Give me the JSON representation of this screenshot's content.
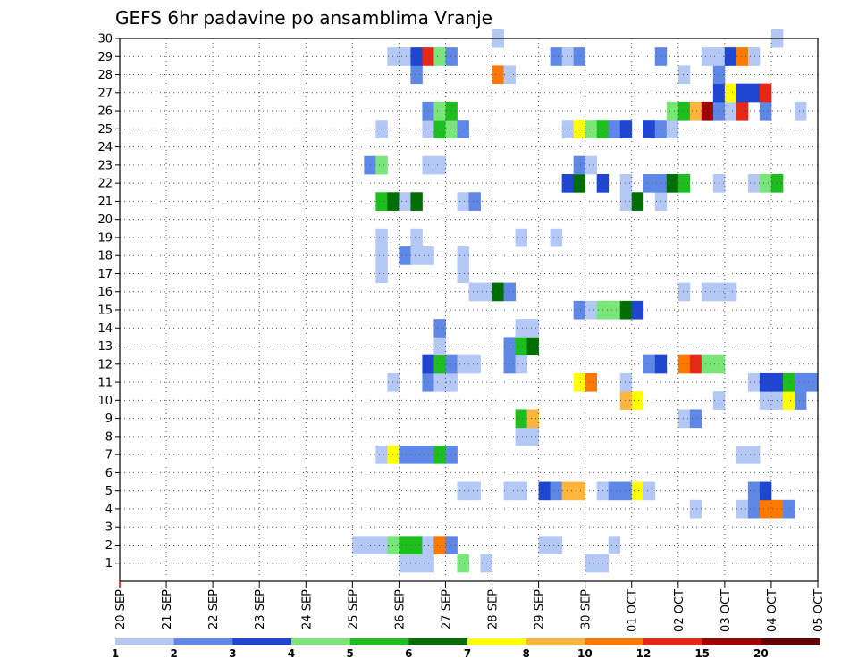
{
  "chart_data": {
    "type": "heatmap",
    "title": "GEFS 6hr padavine po ansamblima Vranje",
    "y_ticks": [
      "1",
      "2",
      "3",
      "4",
      "5",
      "6",
      "7",
      "8",
      "9",
      "10",
      "11",
      "12",
      "13",
      "14",
      "15",
      "16",
      "17",
      "18",
      "19",
      "20",
      "21",
      "22",
      "23",
      "24",
      "25",
      "26",
      "27",
      "28",
      "29",
      "30"
    ],
    "x_ticks": [
      "20 SEP",
      "21 SEP",
      "22 SEP",
      "23 SEP",
      "24 SEP",
      "25 SEP",
      "26 SEP",
      "27 SEP",
      "28 SEP",
      "29 SEP",
      "30 SEP",
      "01 OCT",
      "02 OCT",
      "03 OCT",
      "04 OCT",
      "05 OCT"
    ],
    "x_range": [
      0,
      60
    ],
    "y_range": [
      0,
      30
    ],
    "steps_per_day": 4,
    "grid": "dotted",
    "colorbar": {
      "labels": [
        "1",
        "2",
        "3",
        "4",
        "5",
        "6",
        "7",
        "8",
        "10",
        "12",
        "15",
        "20"
      ],
      "colors": [
        "#b4c8f5",
        "#5f87e6",
        "#1e46d2",
        "#78e678",
        "#1ebe1e",
        "#006e00",
        "#ffff00",
        "#ffb43c",
        "#ff7800",
        "#e62814",
        "#a00000",
        "#640000"
      ]
    },
    "members": [
      {
        "member": 1,
        "cells": [
          [
            24,
            1
          ],
          [
            25,
            1
          ],
          [
            26,
            1
          ],
          [
            29,
            4
          ],
          [
            31,
            1
          ],
          [
            40,
            1
          ],
          [
            41,
            1
          ]
        ]
      },
      {
        "member": 2,
        "cells": [
          [
            20,
            1
          ],
          [
            21,
            1
          ],
          [
            22,
            1
          ],
          [
            23,
            4
          ],
          [
            24,
            5
          ],
          [
            25,
            5
          ],
          [
            26,
            1
          ],
          [
            27,
            9
          ],
          [
            28,
            2
          ],
          [
            36,
            1
          ],
          [
            37,
            1
          ],
          [
            42,
            1
          ]
        ]
      },
      {
        "member": 4,
        "cells": [
          [
            49,
            1
          ],
          [
            53,
            1
          ],
          [
            54,
            2
          ],
          [
            55,
            9
          ],
          [
            56,
            9
          ],
          [
            57,
            2
          ]
        ]
      },
      {
        "member": 5,
        "cells": [
          [
            29,
            1
          ],
          [
            30,
            1
          ],
          [
            33,
            1
          ],
          [
            34,
            1
          ],
          [
            36,
            3
          ],
          [
            37,
            2
          ],
          [
            38,
            8
          ],
          [
            39,
            8
          ],
          [
            41,
            1
          ],
          [
            42,
            2
          ],
          [
            43,
            2
          ],
          [
            44,
            7
          ],
          [
            45,
            1
          ],
          [
            54,
            2
          ],
          [
            55,
            3
          ]
        ]
      },
      {
        "member": 7,
        "cells": [
          [
            22,
            1
          ],
          [
            23,
            7
          ],
          [
            24,
            2
          ],
          [
            25,
            2
          ],
          [
            26,
            2
          ],
          [
            27,
            5
          ],
          [
            28,
            2
          ],
          [
            53,
            1
          ],
          [
            54,
            1
          ]
        ]
      },
      {
        "member": 8,
        "cells": [
          [
            34,
            1
          ],
          [
            35,
            1
          ]
        ]
      },
      {
        "member": 9,
        "cells": [
          [
            34,
            5
          ],
          [
            35,
            8
          ],
          [
            48,
            1
          ],
          [
            49,
            2
          ]
        ]
      },
      {
        "member": 10,
        "cells": [
          [
            43,
            8
          ],
          [
            44,
            7
          ],
          [
            51,
            1
          ],
          [
            55,
            1
          ],
          [
            56,
            1
          ],
          [
            57,
            7
          ],
          [
            58,
            2
          ]
        ]
      },
      {
        "member": 11,
        "cells": [
          [
            23,
            1
          ],
          [
            26,
            2
          ],
          [
            27,
            1
          ],
          [
            28,
            1
          ],
          [
            39,
            7
          ],
          [
            40,
            9
          ],
          [
            43,
            1
          ],
          [
            54,
            1
          ],
          [
            55,
            3
          ],
          [
            56,
            3
          ],
          [
            57,
            5
          ],
          [
            58,
            2
          ],
          [
            59,
            2
          ]
        ]
      },
      {
        "member": 12,
        "cells": [
          [
            26,
            3
          ],
          [
            27,
            5
          ],
          [
            28,
            2
          ],
          [
            29,
            1
          ],
          [
            30,
            1
          ],
          [
            33,
            2
          ],
          [
            34,
            1
          ],
          [
            45,
            2
          ],
          [
            46,
            3
          ],
          [
            48,
            9
          ],
          [
            49,
            10
          ],
          [
            50,
            4
          ],
          [
            51,
            4
          ]
        ]
      },
      {
        "member": 13,
        "cells": [
          [
            27,
            1
          ],
          [
            33,
            2
          ],
          [
            34,
            5
          ],
          [
            35,
            6
          ]
        ]
      },
      {
        "member": 14,
        "cells": [
          [
            27,
            2
          ],
          [
            34,
            1
          ],
          [
            35,
            1
          ]
        ]
      },
      {
        "member": 15,
        "cells": [
          [
            39,
            2
          ],
          [
            40,
            1
          ],
          [
            41,
            4
          ],
          [
            42,
            4
          ],
          [
            43,
            6
          ],
          [
            44,
            3
          ]
        ]
      },
      {
        "member": 16,
        "cells": [
          [
            30,
            1
          ],
          [
            31,
            1
          ],
          [
            32,
            6
          ],
          [
            33,
            2
          ],
          [
            48,
            1
          ],
          [
            50,
            1
          ],
          [
            51,
            1
          ],
          [
            52,
            1
          ]
        ]
      },
      {
        "member": 17,
        "cells": [
          [
            22,
            1
          ],
          [
            29,
            1
          ]
        ]
      },
      {
        "member": 18,
        "cells": [
          [
            22,
            1
          ],
          [
            24,
            2
          ],
          [
            25,
            1
          ],
          [
            26,
            1
          ],
          [
            29,
            1
          ]
        ]
      },
      {
        "member": 19,
        "cells": [
          [
            22,
            1
          ],
          [
            25,
            1
          ],
          [
            34,
            1
          ],
          [
            37,
            1
          ]
        ]
      },
      {
        "member": 21,
        "cells": [
          [
            22,
            5
          ],
          [
            23,
            6
          ],
          [
            24,
            1
          ],
          [
            25,
            6
          ],
          [
            29,
            1
          ],
          [
            30,
            2
          ],
          [
            43,
            1
          ],
          [
            44,
            6
          ],
          [
            46,
            1
          ]
        ]
      },
      {
        "member": 22,
        "cells": [
          [
            38,
            3
          ],
          [
            39,
            6
          ],
          [
            41,
            3
          ],
          [
            43,
            1
          ],
          [
            45,
            2
          ],
          [
            46,
            2
          ],
          [
            47,
            6
          ],
          [
            48,
            5
          ],
          [
            51,
            1
          ],
          [
            54,
            1
          ],
          [
            55,
            4
          ],
          [
            56,
            5
          ]
        ]
      },
      {
        "member": 23,
        "cells": [
          [
            21,
            2
          ],
          [
            22,
            4
          ],
          [
            26,
            1
          ],
          [
            27,
            1
          ],
          [
            39,
            2
          ],
          [
            40,
            1
          ]
        ]
      },
      {
        "member": 25,
        "cells": [
          [
            22,
            1
          ],
          [
            26,
            1
          ],
          [
            27,
            5
          ],
          [
            28,
            4
          ],
          [
            29,
            2
          ],
          [
            38,
            1
          ],
          [
            39,
            7
          ],
          [
            40,
            4
          ],
          [
            41,
            5
          ],
          [
            42,
            2
          ],
          [
            43,
            3
          ],
          [
            45,
            3
          ],
          [
            46,
            2
          ],
          [
            47,
            1
          ]
        ]
      },
      {
        "member": 26,
        "cells": [
          [
            26,
            2
          ],
          [
            27,
            4
          ],
          [
            28,
            5
          ],
          [
            47,
            4
          ],
          [
            48,
            5
          ],
          [
            49,
            8
          ],
          [
            50,
            11
          ],
          [
            51,
            2
          ],
          [
            52,
            1
          ],
          [
            53,
            10
          ],
          [
            55,
            2
          ],
          [
            58,
            1
          ]
        ]
      },
      {
        "member": 27,
        "cells": [
          [
            51,
            3
          ],
          [
            52,
            7
          ],
          [
            53,
            3
          ],
          [
            54,
            3
          ],
          [
            55,
            10
          ]
        ]
      },
      {
        "member": 28,
        "cells": [
          [
            25,
            2
          ],
          [
            32,
            9
          ],
          [
            33,
            1
          ],
          [
            48,
            1
          ],
          [
            51,
            2
          ]
        ]
      },
      {
        "member": 29,
        "cells": [
          [
            23,
            1
          ],
          [
            24,
            1
          ],
          [
            25,
            3
          ],
          [
            26,
            10
          ],
          [
            27,
            4
          ],
          [
            28,
            2
          ],
          [
            37,
            2
          ],
          [
            38,
            1
          ],
          [
            39,
            2
          ],
          [
            46,
            2
          ],
          [
            50,
            1
          ],
          [
            51,
            1
          ],
          [
            52,
            3
          ],
          [
            53,
            9
          ],
          [
            54,
            1
          ]
        ]
      },
      {
        "member": 30,
        "cells": [
          [
            32,
            1
          ],
          [
            56,
            1
          ]
        ]
      }
    ]
  }
}
